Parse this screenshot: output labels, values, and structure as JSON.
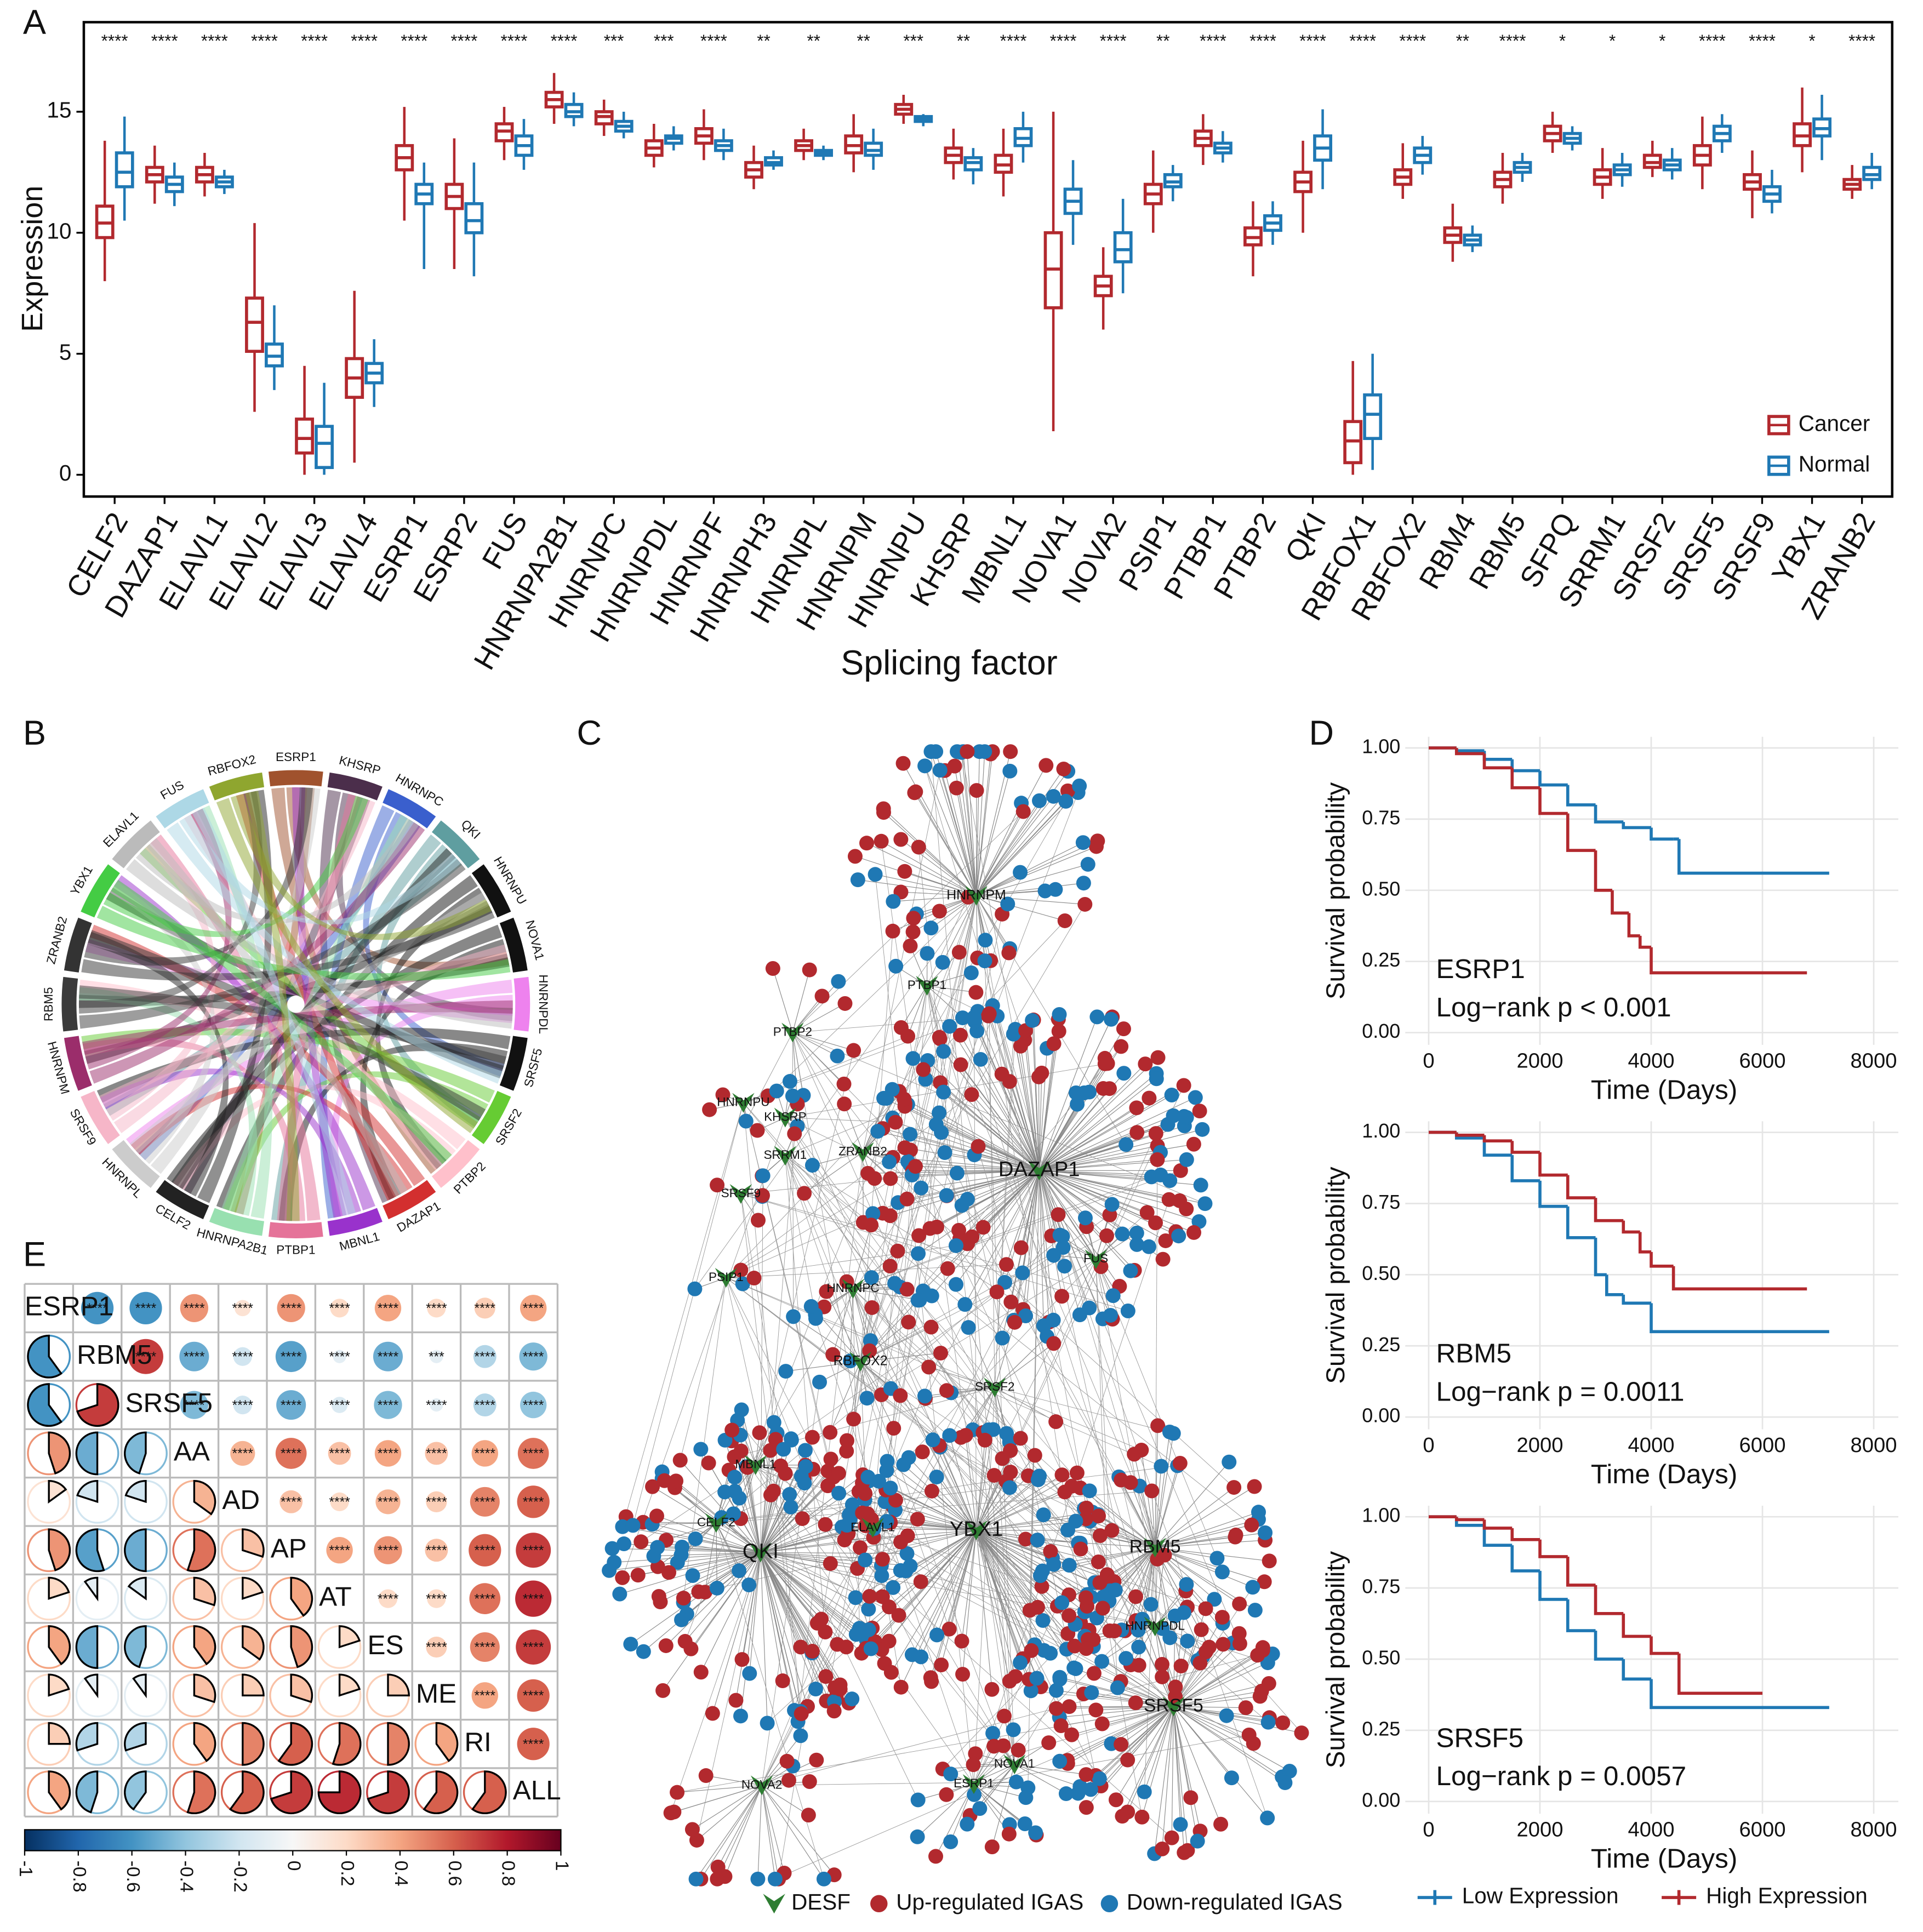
{
  "chart_data": [
    {
      "panel": "A",
      "type": "box",
      "xlabel": "Splicing factor",
      "ylabel": "Expression",
      "legend": "bottom-right",
      "categories": [
        "CELF2",
        "DAZAP1",
        "ELAVL1",
        "ELAVL2",
        "ELAVL3",
        "ELAVL4",
        "ESRP1",
        "ESRP2",
        "FUS",
        "HNRNPA2B1",
        "HNRNPC",
        "HNRNPDL",
        "HNRNPF",
        "HNRNPH3",
        "HNRNPL",
        "HNRNPM",
        "HNRNPU",
        "KHSRP",
        "MBNL1",
        "NOVA1",
        "NOVA2",
        "PSIP1",
        "PTBP1",
        "PTBP2",
        "QKI",
        "RBFOX1",
        "RBFOX2",
        "RBM4",
        "RBM5",
        "SFPQ",
        "SRRM1",
        "SRSF2",
        "SRSF5",
        "SRSF9",
        "YBX1",
        "ZRANB2"
      ],
      "annotations": [
        "****",
        "****",
        "****",
        "****",
        "****",
        "****",
        "****",
        "****",
        "****",
        "****",
        "***",
        "***",
        "****",
        "**",
        "**",
        "**",
        "***",
        "**",
        "****",
        "****",
        "****",
        "**",
        "****",
        "****",
        "****",
        "****",
        "****",
        "**",
        "****",
        "*",
        "*",
        "*",
        "****",
        "****",
        "*",
        "****"
      ],
      "series": [
        {
          "name": "Cancer",
          "color": "#b2292e",
          "low": [
            8,
            11.2,
            11.5,
            2.6,
            0,
            0.5,
            10.5,
            8.5,
            13,
            14.5,
            14,
            12.7,
            13,
            11.8,
            13,
            12.5,
            14.5,
            12.2,
            11.5,
            1.8,
            6,
            10,
            12.8,
            8.2,
            10,
            0,
            11.4,
            8.8,
            11.2,
            13.3,
            11.4,
            12.3,
            11.8,
            10.6,
            12.5,
            11.4
          ],
          "q1": [
            9.8,
            12.1,
            12.1,
            5.1,
            0.9,
            3.2,
            12.6,
            11,
            13.8,
            15.2,
            14.5,
            13.2,
            13.7,
            12.3,
            13.4,
            13.3,
            14.9,
            12.9,
            12.5,
            6.9,
            7.4,
            11.2,
            13.6,
            9.5,
            11.7,
            0.5,
            12,
            9.6,
            11.9,
            13.8,
            12,
            12.7,
            12.8,
            11.8,
            13.6,
            11.8
          ],
          "median": [
            10.4,
            12.4,
            12.4,
            6.3,
            1.5,
            4,
            13.1,
            11.5,
            14.2,
            15.5,
            14.8,
            13.5,
            14,
            12.6,
            13.6,
            13.6,
            15.1,
            13.2,
            12.8,
            8.5,
            7.8,
            11.6,
            13.9,
            9.8,
            12.1,
            1.4,
            12.3,
            9.9,
            12.2,
            14.1,
            12.3,
            12.9,
            13.2,
            12.1,
            14,
            12
          ],
          "q3": [
            11.1,
            12.7,
            12.7,
            7.3,
            2.3,
            4.8,
            13.6,
            12,
            14.5,
            15.8,
            15,
            13.8,
            14.3,
            12.9,
            13.8,
            14,
            15.3,
            13.5,
            13.2,
            10,
            8.2,
            12,
            14.2,
            10.2,
            12.5,
            2.2,
            12.6,
            10.2,
            12.5,
            14.4,
            12.6,
            13.2,
            13.6,
            12.4,
            14.5,
            12.2
          ],
          "high": [
            13.8,
            13.6,
            13.3,
            10.4,
            4.5,
            7.6,
            15.2,
            13.9,
            15.2,
            16.6,
            15.5,
            14.5,
            15.1,
            13.6,
            14.3,
            14.9,
            15.7,
            14.3,
            14.3,
            15,
            9.4,
            13.4,
            14.9,
            11.3,
            13.8,
            4.7,
            13.7,
            11.2,
            13.3,
            15,
            13.5,
            13.8,
            14.8,
            13.4,
            16,
            12.8
          ]
        },
        {
          "name": "Normal",
          "color": "#1f78b4",
          "low": [
            10.5,
            11.1,
            11.6,
            3.5,
            0,
            2.8,
            8.5,
            8.2,
            12.6,
            14.4,
            13.9,
            13.4,
            13,
            12.6,
            13,
            12.6,
            14.4,
            12,
            12.9,
            9.5,
            7.5,
            11.3,
            12.9,
            9.5,
            11.8,
            0.2,
            12.4,
            9.2,
            12.1,
            13.4,
            11.9,
            12.2,
            13.3,
            10.8,
            13,
            11.8
          ],
          "q1": [
            11.9,
            11.7,
            11.9,
            4.5,
            0.3,
            3.8,
            11.2,
            10,
            13.2,
            14.8,
            14.2,
            13.7,
            13.4,
            12.8,
            13.2,
            13.2,
            14.6,
            12.6,
            13.6,
            10.8,
            8.8,
            11.9,
            13.3,
            10.1,
            13,
            1.5,
            12.9,
            9.5,
            12.5,
            13.7,
            12.4,
            12.6,
            13.8,
            11.3,
            14,
            12.2
          ],
          "median": [
            12.5,
            12,
            12.1,
            4.9,
            1.3,
            4.2,
            11.6,
            10.5,
            13.6,
            15,
            14.4,
            13.9,
            13.6,
            12.9,
            13.3,
            13.4,
            14.7,
            12.9,
            13.9,
            11.3,
            9.3,
            12.1,
            13.5,
            10.4,
            13.5,
            2.5,
            13.2,
            9.7,
            12.7,
            13.9,
            12.6,
            12.8,
            14.1,
            11.6,
            14.3,
            12.4
          ],
          "q3": [
            13.3,
            12.3,
            12.3,
            5.4,
            2,
            4.6,
            12,
            11.2,
            14,
            15.3,
            14.6,
            14,
            13.8,
            13.1,
            13.4,
            13.7,
            14.8,
            13.1,
            14.3,
            11.8,
            10,
            12.4,
            13.7,
            10.7,
            14,
            3.3,
            13.5,
            9.9,
            12.9,
            14.1,
            12.8,
            13,
            14.4,
            11.9,
            14.7,
            12.7
          ],
          "high": [
            14.8,
            12.9,
            12.6,
            7,
            3.8,
            5.6,
            12.9,
            12.9,
            14.7,
            15.8,
            15,
            14.4,
            14.3,
            13.4,
            13.6,
            14.3,
            14.9,
            13.5,
            15,
            13,
            11.4,
            12.8,
            14.2,
            11.3,
            15.1,
            5,
            14,
            10.3,
            13.3,
            14.4,
            13.3,
            13.5,
            14.9,
            12.6,
            15.7,
            13.3
          ]
        }
      ],
      "ylim": [
        -0.9,
        18.7
      ],
      "yticks": [
        0,
        5,
        10,
        15
      ]
    },
    {
      "panel": "B",
      "type": "chord",
      "categories": [
        "ESRP1",
        "KHSRP",
        "HNRNPC",
        "QKI",
        "HNRNPU",
        "NOVA1",
        "HNRNPDL",
        "SRSF5",
        "SRSF2",
        "PTBP2",
        "DAZAP1",
        "MBNL1",
        "PTBP1",
        "HNRNPA2B1",
        "CELF2",
        "HNRNPL",
        "SRSF9",
        "HNRNPM",
        "RBM5",
        "ZRANB2",
        "YBX1",
        "ELAVL1",
        "FUS",
        "RBFOX2"
      ],
      "colors": [
        "#a0522d",
        "#4b2e4b",
        "#3a5fcd",
        "#5f9ea0",
        "#111111",
        "#111111",
        "#ee82ee",
        "#111111",
        "#66cc33",
        "#ffc0cb",
        "#d32f2f",
        "#9932cc",
        "#e57399",
        "#98e0b0",
        "#222222",
        "#cccccc",
        "#f6b6c8",
        "#9b2d6b",
        "#3b3b3b",
        "#333333",
        "#44cc44",
        "#bbbbbb",
        "#add8e6",
        "#8fa62f"
      ]
    },
    {
      "panel": "C",
      "type": "network",
      "nodes": [
        "HNRNPM",
        "PTBP1",
        "PTBP2",
        "HNRNPU",
        "KHSRP",
        "ZRANB2",
        "SRRM1",
        "DAZAP1",
        "SRSF9",
        "FUS",
        "PSIP1",
        "HNRNPC",
        "RBFOX2",
        "SRSF2",
        "MBNL1",
        "CELF2",
        "ELAVL1",
        "QKI",
        "YBX1",
        "RBM5",
        "HNRNPDL",
        "SRSF5",
        "NOVA1",
        "ESRP1",
        "NOVA2"
      ],
      "legend": [
        "DESF",
        "Up-regulated IGAS",
        "Down-regulated IGAS"
      ],
      "colors": [
        "#2e7d32",
        "#b2292e",
        "#1f78b4"
      ]
    },
    {
      "panel": "D",
      "type": "km",
      "xlabel": "Time (Days)",
      "ylabel": "Survival probability",
      "series": [
        {
          "name": "Low Expression",
          "color": "#1f78b4"
        },
        {
          "name": "High Expression",
          "color": "#b2292e"
        }
      ],
      "xlim": [
        -421,
        8443
      ],
      "xticks": [
        0,
        2000,
        4000,
        6000,
        8000
      ],
      "ylim": [
        -0.043,
        1.039
      ],
      "yticks": [
        {
          "value": 0,
          "label": "0.00"
        },
        {
          "value": 0.25,
          "label": "0.25"
        },
        {
          "value": 0.5,
          "label": "0.50"
        },
        {
          "value": 0.75,
          "label": "0.75"
        },
        {
          "value": 1,
          "label": "1.00"
        }
      ],
      "subplots": [
        {
          "title": "ESRP1",
          "annotation": "Log−rank p < 0.001",
          "curves": [
            {
              "x": [
                0,
                500,
                1000,
                1500,
                2000,
                2500,
                3000,
                3500,
                4000,
                4400,
                4500,
                7200
              ],
              "y": [
                1,
                0.99,
                0.96,
                0.92,
                0.87,
                0.8,
                0.74,
                0.72,
                0.68,
                0.68,
                0.56,
                0.56
              ]
            },
            {
              "x": [
                0,
                500,
                1000,
                1500,
                2000,
                2500,
                3000,
                3300,
                3600,
                3800,
                4000,
                6800
              ],
              "y": [
                1,
                0.98,
                0.93,
                0.86,
                0.77,
                0.64,
                0.5,
                0.42,
                0.34,
                0.3,
                0.21,
                0.21
              ]
            }
          ]
        },
        {
          "title": "RBM5",
          "annotation": "Log−rank p = 0.0011",
          "curves": [
            {
              "x": [
                0,
                500,
                1000,
                1500,
                2000,
                2500,
                3000,
                3200,
                3500,
                4000,
                7200
              ],
              "y": [
                1,
                0.98,
                0.92,
                0.83,
                0.74,
                0.63,
                0.5,
                0.43,
                0.4,
                0.3,
                0.3
              ]
            },
            {
              "x": [
                0,
                500,
                1000,
                1500,
                2000,
                2500,
                3000,
                3500,
                3800,
                4000,
                4400,
                6800
              ],
              "y": [
                1,
                0.99,
                0.97,
                0.93,
                0.85,
                0.77,
                0.69,
                0.65,
                0.58,
                0.53,
                0.45,
                0.45
              ]
            }
          ]
        },
        {
          "title": "SRSF5",
          "annotation": "Log−rank p = 0.0057",
          "curves": [
            {
              "x": [
                0,
                500,
                1000,
                1500,
                2000,
                2500,
                3000,
                3500,
                4000,
                7200
              ],
              "y": [
                1,
                0.97,
                0.9,
                0.81,
                0.71,
                0.6,
                0.5,
                0.43,
                0.33,
                0.33
              ]
            },
            {
              "x": [
                0,
                500,
                1000,
                1500,
                2000,
                2500,
                3000,
                3500,
                4000,
                4500,
                6000
              ],
              "y": [
                1,
                0.99,
                0.96,
                0.92,
                0.86,
                0.76,
                0.66,
                0.58,
                0.52,
                0.38,
                0.38
              ]
            }
          ]
        }
      ]
    },
    {
      "panel": "E",
      "type": "corrplot",
      "labels": [
        "ESRP1",
        "RBM5",
        "SRSF5",
        "AA",
        "AD",
        "AP",
        "AT",
        "ES",
        "ME",
        "RI",
        "ALL"
      ],
      "values": [
        [],
        [
          -0.6
        ],
        [
          -0.6,
          0.7
        ],
        [
          0.45,
          -0.5,
          -0.45
        ],
        [
          0.15,
          -0.2,
          -0.2,
          0.35
        ],
        [
          0.45,
          -0.55,
          -0.5,
          0.55,
          0.3
        ],
        [
          0.2,
          -0.1,
          -0.15,
          0.3,
          0.2,
          0.4
        ],
        [
          0.4,
          -0.5,
          -0.45,
          0.4,
          0.35,
          0.45,
          0.2
        ],
        [
          0.2,
          -0.1,
          -0.1,
          0.3,
          0.25,
          0.3,
          0.2,
          0.25
        ],
        [
          0.25,
          -0.3,
          -0.3,
          0.4,
          0.5,
          0.6,
          0.55,
          0.5,
          0.4
        ],
        [
          0.4,
          -0.45,
          -0.4,
          0.55,
          0.6,
          0.7,
          0.75,
          0.7,
          0.6,
          0.6
        ]
      ],
      "stars": [
        [],
        [
          "****"
        ],
        [
          "****",
          "****"
        ],
        [
          "****",
          "****",
          "****"
        ],
        [
          "****",
          "****",
          "****",
          "****"
        ],
        [
          "****",
          "****",
          "****",
          "****",
          "****"
        ],
        [
          "****",
          "****",
          "****",
          "****",
          "****",
          "****"
        ],
        [
          "****",
          "****",
          "****",
          "****",
          "****",
          "****",
          "****"
        ],
        [
          "****",
          "***",
          "****",
          "****",
          "****",
          "****",
          "****",
          "****"
        ],
        [
          "****",
          "****",
          "****",
          "****",
          "****",
          "****",
          "****",
          "****",
          "****"
        ],
        [
          "****",
          "****",
          "****",
          "****",
          "****",
          "****",
          "****",
          "****",
          "****",
          "****"
        ]
      ],
      "clim": [
        -1,
        1
      ],
      "cticks": [
        -1,
        -0.8,
        -0.6,
        -0.4,
        -0.2,
        0,
        0.2,
        0.4,
        0.6,
        0.8,
        1
      ],
      "colorscale": [
        "#053061",
        "#2166ac",
        "#4393c3",
        "#92c5de",
        "#d1e5f0",
        "#f7f7f7",
        "#fddbc7",
        "#f4a582",
        "#d6604d",
        "#b2182b",
        "#67001f"
      ]
    }
  ]
}
